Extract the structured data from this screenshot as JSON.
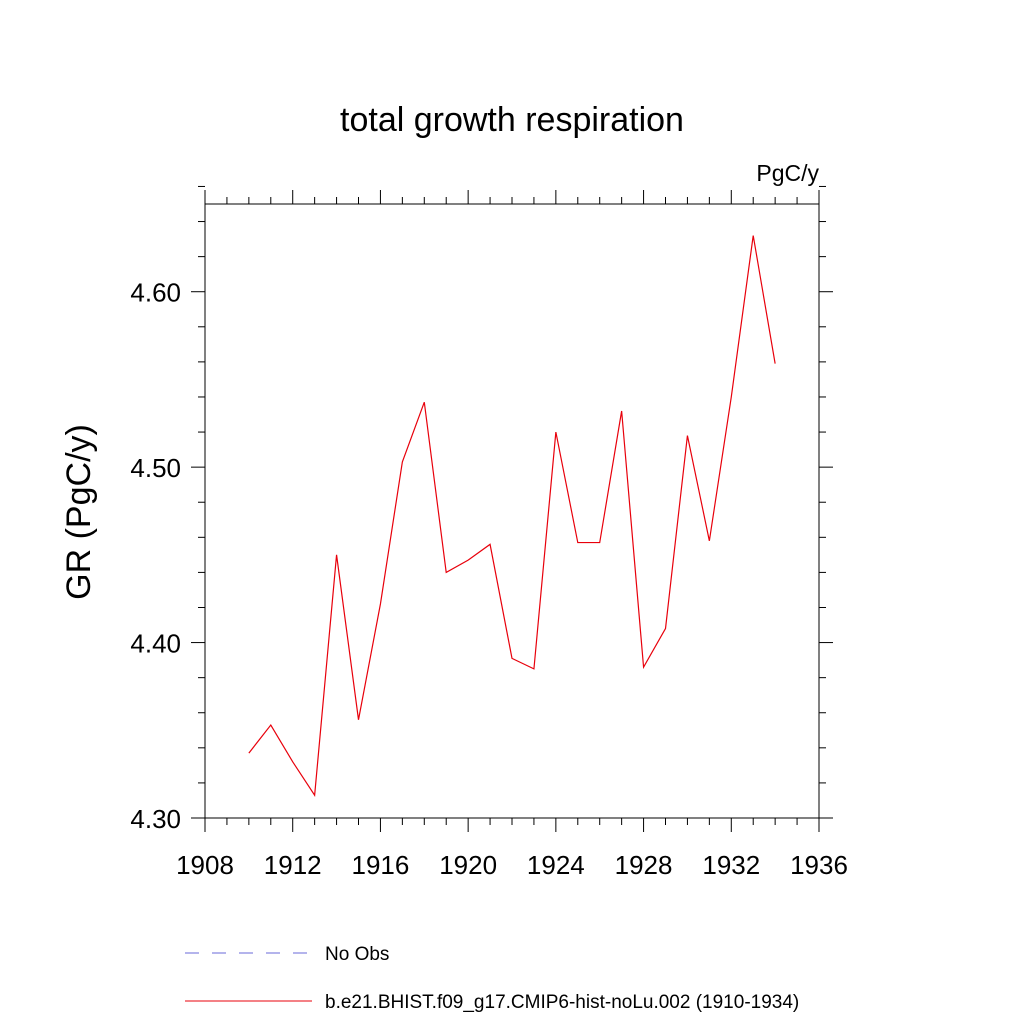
{
  "chart_data": {
    "type": "line",
    "title": "total growth respiration",
    "units_label": "PgC/y",
    "ylabel": "GR  (PgC/y)",
    "xlabel": "",
    "xlim": [
      1908,
      1936
    ],
    "ylim": [
      4.3,
      4.65
    ],
    "x_ticks": [
      1908,
      1912,
      1916,
      1920,
      1924,
      1928,
      1932,
      1936
    ],
    "y_ticks": [
      4.3,
      4.4,
      4.5,
      4.6
    ],
    "x_tick_labels": [
      "1908",
      "1912",
      "1916",
      "1920",
      "1924",
      "1928",
      "1932",
      "1936"
    ],
    "y_tick_labels": [
      "4.30",
      "4.40",
      "4.50",
      "4.60"
    ],
    "grid": false,
    "legend_position": "bottom",
    "legend": [
      {
        "label": "No Obs",
        "color": "#6a6ad8",
        "style": "dashed"
      },
      {
        "label": "b.e21.BHIST.f09_g17.CMIP6-hist-noLu.002 (1910-1934)",
        "color": "#e8000b",
        "style": "solid"
      }
    ],
    "series": [
      {
        "name": "b.e21.BHIST.f09_g17.CMIP6-hist-noLu.002 (1910-1934)",
        "color": "#e8000b",
        "x": [
          1910,
          1911,
          1912,
          1913,
          1914,
          1915,
          1916,
          1917,
          1918,
          1919,
          1920,
          1921,
          1922,
          1923,
          1924,
          1925,
          1926,
          1927,
          1928,
          1929,
          1930,
          1931,
          1932,
          1933,
          1934
        ],
        "y": [
          4.337,
          4.353,
          4.332,
          4.313,
          4.45,
          4.356,
          4.422,
          4.503,
          4.537,
          4.44,
          4.447,
          4.456,
          4.391,
          4.385,
          4.52,
          4.457,
          4.457,
          4.532,
          4.386,
          4.408,
          4.518,
          4.458,
          4.54,
          4.632,
          4.559
        ]
      }
    ]
  }
}
